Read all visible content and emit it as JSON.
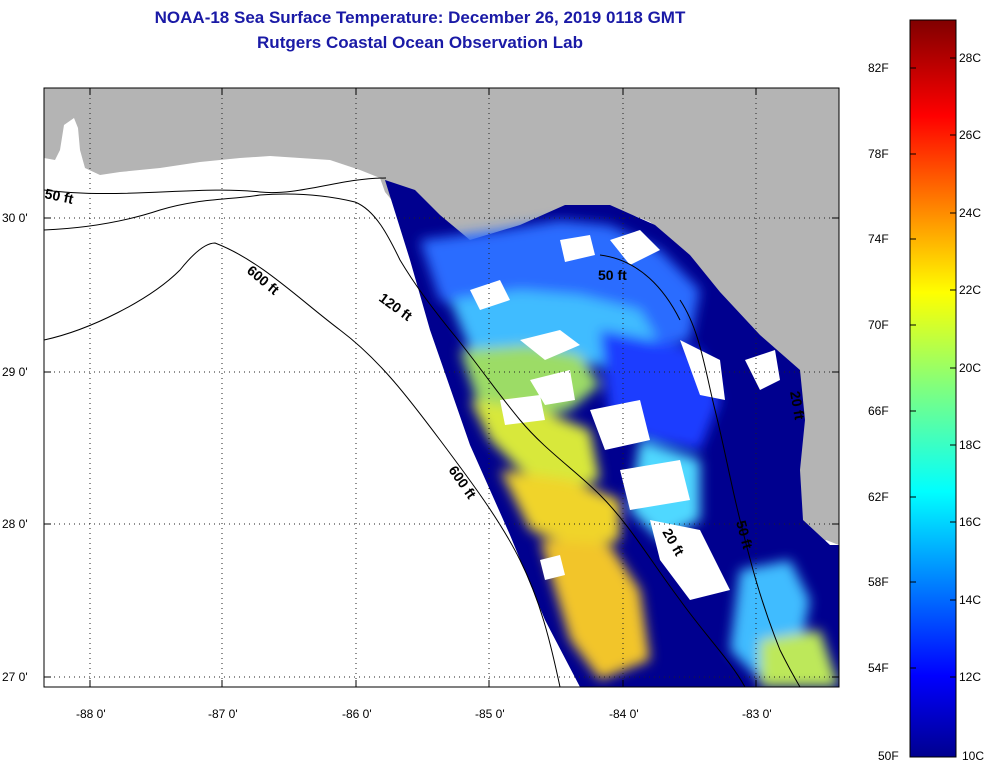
{
  "title": "NOAA-18 Sea Surface Temperature:  December 26, 2019 0118 GMT",
  "subtitle": "Rutgers Coastal Ocean Observation Lab",
  "map": {
    "lon_labels": [
      "-88 0'",
      "-87 0'",
      "-86 0'",
      "-85 0'",
      "-84 0'",
      "-83 0'"
    ],
    "lat_labels": [
      "30 0'",
      "29 0'",
      "28 0'",
      "27 0'"
    ],
    "contours": [
      "50 ft",
      "600 ft",
      "120 ft",
      "600 ft",
      "50 ft",
      "20 ft",
      "50 ft",
      "20 ft"
    ],
    "colors": {
      "land": "#b4b4b4",
      "nodata": "#ffffff",
      "cold": "#00008f"
    }
  },
  "colorbar": {
    "fahrenheit": [
      "82F",
      "78F",
      "74F",
      "70F",
      "66F",
      "62F",
      "58F",
      "54F",
      "50F"
    ],
    "celsius": [
      "28C",
      "26C",
      "24C",
      "22C",
      "20C",
      "18C",
      "16C",
      "14C",
      "12C",
      "10C"
    ]
  }
}
